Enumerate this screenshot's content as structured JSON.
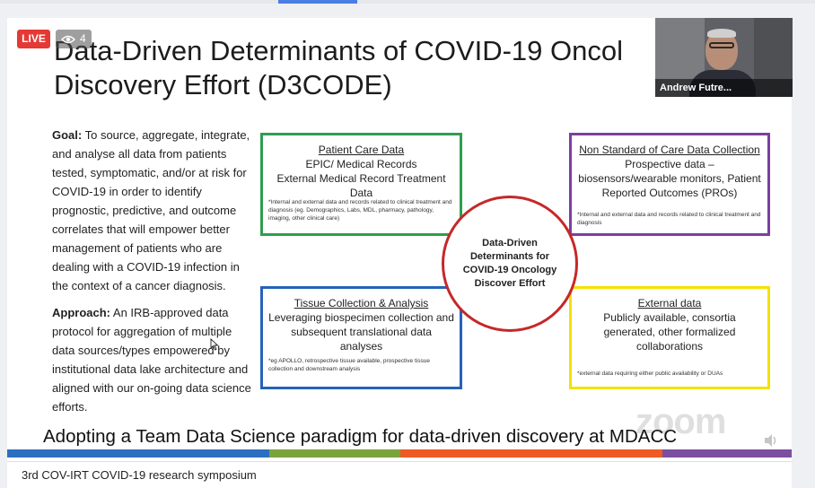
{
  "stream": {
    "live_label": "LIVE",
    "viewer_count": "4",
    "eye_icon": "eye-icon"
  },
  "webcam": {
    "participant_name": "Andrew Futre..."
  },
  "slide": {
    "title_line1": "Data-Driven Determinants of COVID-19 Oncol",
    "title_line2": "Discovery Effort (D3CODE)",
    "goal_label": "Goal:",
    "goal_text": " To source, aggregate, integrate, and analyse all data from patients tested, symptomatic, and/or at risk for COVID-19 in order to identify prognostic, predictive, and outcome correlates  that will empower better management of patients who are dealing with a COVID-19 infection in the context of a cancer diagnosis.",
    "approach_label": "Approach:",
    "approach_text": " An IRB-approved data protocol for aggregation of multiple data sources/types empowered by institutional data lake architecture and aligned with our on-going data science efforts.",
    "boxes": {
      "patient_care": {
        "heading": "Patient Care Data",
        "line1": "EPIC/ Medical Records",
        "line2": "External Medical Record Treatment Data",
        "note": "*Internal and external data and records related to clinical treatment and diagnosis (eg. Demographics, Labs, MDL, pharmacy, pathology, imaging, other clinical care)",
        "color": "#2e9e4f"
      },
      "non_standard": {
        "heading": "Non Standard of Care Data Collection",
        "line1": "Prospective data – biosensors/wearable monitors, Patient Reported Outcomes (PROs)",
        "note": "*Internal and external data and records related to clinical treatment and diagnosis",
        "color": "#7b3fa0"
      },
      "tissue": {
        "heading": "Tissue Collection & Analysis",
        "line1": "Leveraging biospecimen collection and subsequent translational data analyses",
        "note": "*eg APOLLO, retrospective tissue available, prospective tissue collection and downstream analysis",
        "color": "#2563b8"
      },
      "external": {
        "heading": "External data",
        "line1": "Publicly available, consortia generated, other formalized collaborations",
        "note": "*external data requiring either public availability or DUAs",
        "color": "#f2e200"
      }
    },
    "center_text": "Data-Driven Determinants for COVID-19 Oncology Discover Effort",
    "footer_caption": "Adopting a Team Data Science paradigm for data-driven discovery at MDACC",
    "watermark": "zoom",
    "band_colors": [
      "#2c6fbf",
      "#2c6fbf",
      "#7aa33c",
      "#ee5a24",
      "#ee5a24",
      "#7b4ea0"
    ]
  },
  "bottom_bar": {
    "video_title": "3rd COV-IRT COVID-19 research symposium"
  }
}
